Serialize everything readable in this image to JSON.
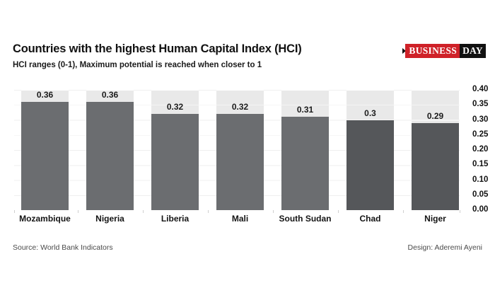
{
  "header": {
    "title": "Countries with the highest Human Capital Index (HCI)",
    "subtitle": "HCI ranges (0-1), Maximum potential is reached when closer to 1"
  },
  "logo": {
    "part1": "BUSINESS",
    "part2": "DAY",
    "red_color": "#cf2128",
    "black_color": "#111111"
  },
  "chart_data": {
    "type": "bar",
    "title": "Countries with the highest Human Capital Index (HCI)",
    "subtitle": "HCI ranges (0-1), Maximum potential is reached when closer to 1",
    "categories": [
      "Mozambique",
      "Nigeria",
      "Liberia",
      "Mali",
      "South Sudan",
      "Chad",
      "Niger"
    ],
    "values": [
      0.36,
      0.36,
      0.32,
      0.32,
      0.31,
      0.3,
      0.29
    ],
    "value_labels": [
      "0.36",
      "0.36",
      "0.32",
      "0.32",
      "0.31",
      "0.3",
      "0.29"
    ],
    "bar_colors": [
      "#6b6d70",
      "#6b6d70",
      "#6b6d70",
      "#6b6d70",
      "#6b6d70",
      "#55575a",
      "#55575a"
    ],
    "column_background": "#e9e9e9",
    "xlabel": "",
    "ylabel": "",
    "ylim": [
      0,
      0.4
    ],
    "yticks": [
      "0.40",
      "0.35",
      "0.30",
      "0.25",
      "0.20",
      "0.15",
      "0.10",
      "0.05",
      "0.00"
    ],
    "grid": true,
    "legend": false,
    "yaxis_position": "right"
  },
  "footer": {
    "source": "Source: World Bank Indicators",
    "design": "Design: Aderemi Ayeni"
  }
}
